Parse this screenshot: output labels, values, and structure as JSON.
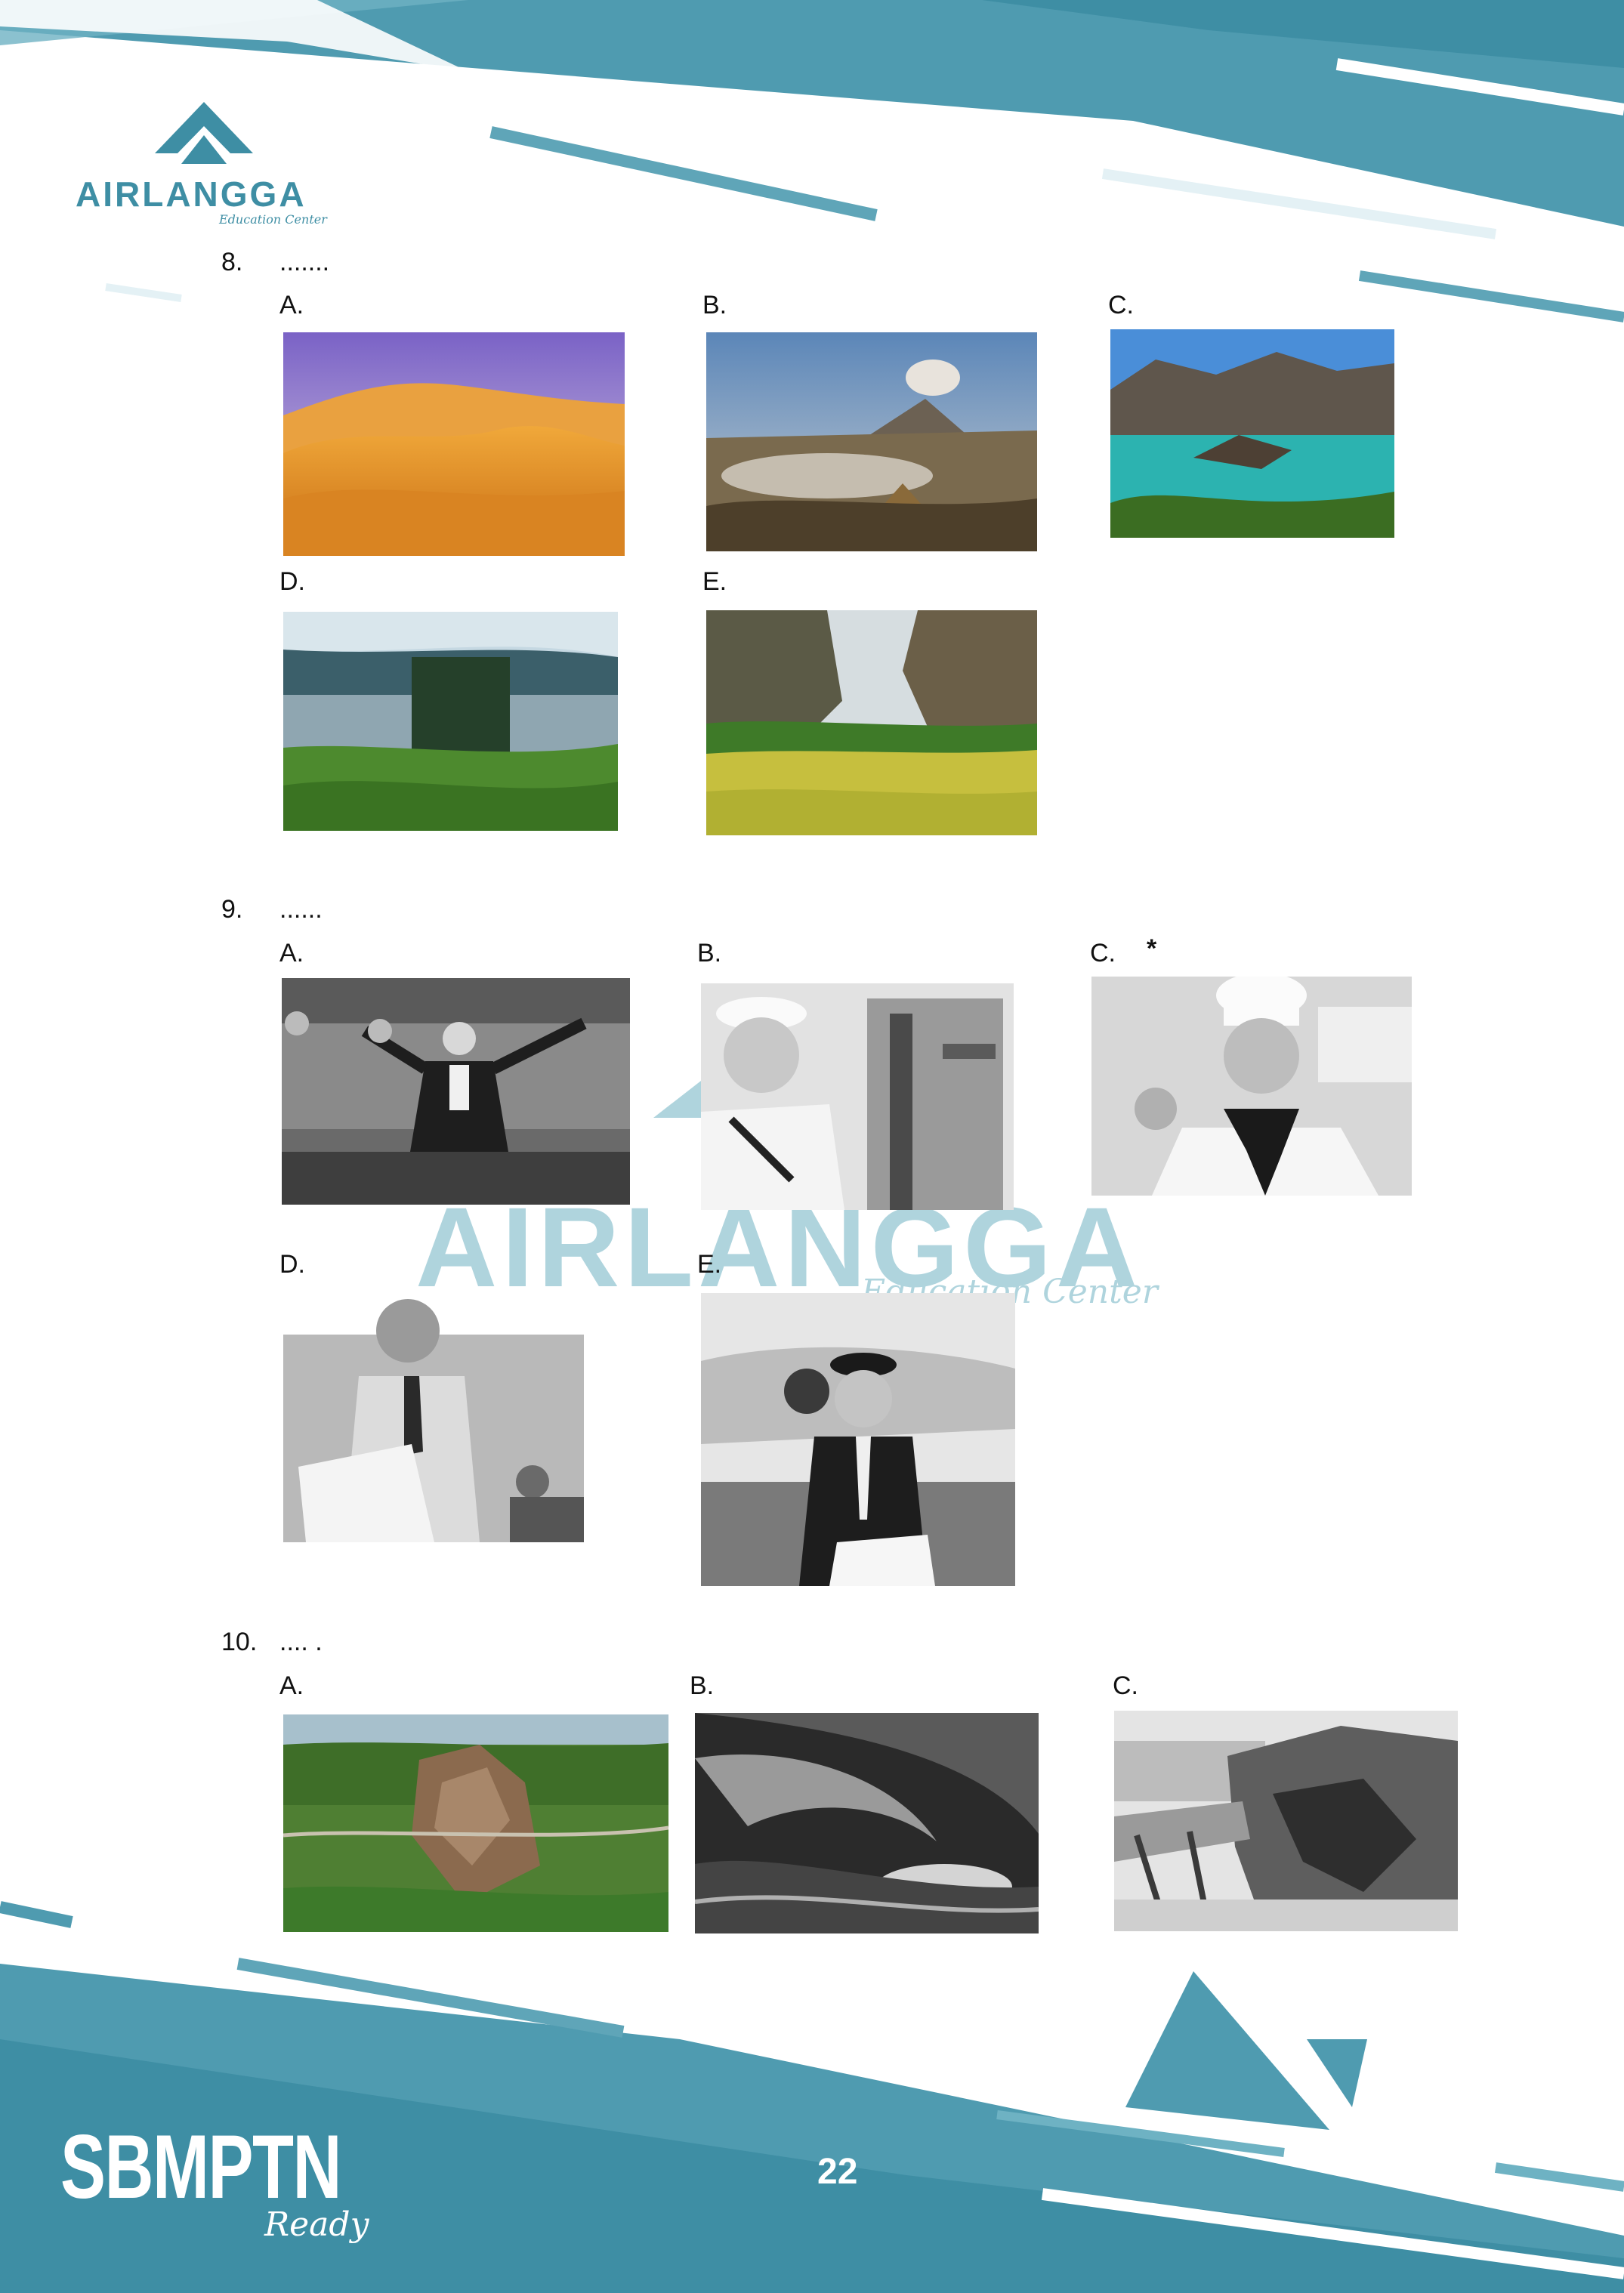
{
  "brand": {
    "logo_text": "AIRLANGGA",
    "logo_subtext": "Education Center",
    "watermark_text": "AIRLANGGA",
    "watermark_subtext": "Education Center",
    "footer_logo": "SBMPTN",
    "footer_logo_sub": "Ready",
    "accent_color": "#4a9cb0"
  },
  "page_number": "22",
  "questions": [
    {
      "number": "8.",
      "stem": ".......",
      "options": [
        {
          "letter": "A.",
          "image": "desert-sand-dunes"
        },
        {
          "letter": "B.",
          "image": "volcano-mount-bromo"
        },
        {
          "letter": "C.",
          "image": "crater-lake-mountains"
        },
        {
          "letter": "D.",
          "image": "lake-with-forest-and-tea-fields"
        },
        {
          "letter": "E.",
          "image": "canyon-valley-green-field"
        }
      ]
    },
    {
      "number": "9.",
      "stem": "......",
      "options": [
        {
          "letter": "A.",
          "image": "judge-in-courtroom",
          "mark": ""
        },
        {
          "letter": "B.",
          "image": "sailor-on-ship",
          "mark": ""
        },
        {
          "letter": "C.",
          "image": "chef-okay-gesture",
          "mark": "*"
        },
        {
          "letter": "D.",
          "image": "office-worker-with-papers",
          "mark": ""
        },
        {
          "letter": "E.",
          "image": "airline-pilot",
          "mark": ""
        }
      ]
    },
    {
      "number": "10.",
      "stem": ".... .",
      "options": [
        {
          "letter": "A.",
          "image": "landslide-aerial"
        },
        {
          "letter": "B.",
          "image": "large-ocean-wave"
        },
        {
          "letter": "C.",
          "image": "earthquake-collapsed-road"
        }
      ]
    }
  ]
}
